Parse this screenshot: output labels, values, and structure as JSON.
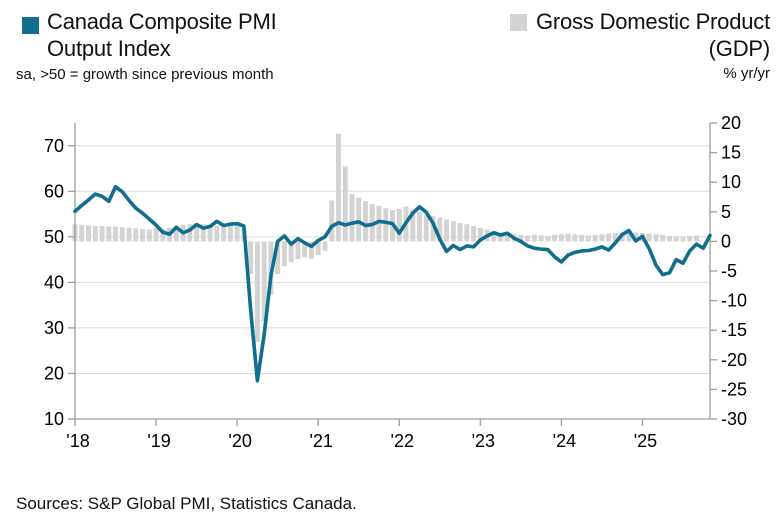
{
  "legend": {
    "pmi": {
      "line1": "Canada Composite PMI",
      "line2": "Output Index",
      "subtitle": "sa, >50 = growth since previous month",
      "color": "#116e8e"
    },
    "gdp": {
      "line1": "Gross Domestic Product",
      "line2": "(GDP)",
      "subtitle": "% yr/yr",
      "color": "#d3d3d3"
    }
  },
  "footer": {
    "sources": "Sources: S&P Global PMI, Statistics Canada."
  },
  "chart_data": {
    "type": "line+bar combo, monthly data Jan 2018 onward",
    "x_tick_labels": [
      "'18",
      "'19",
      "'20",
      "'21",
      "'22",
      "'23",
      "'24",
      "'25"
    ],
    "months_per_point": 1,
    "start_month": "2018-01",
    "left_axis": {
      "min": 10,
      "max": 75,
      "ticks": [
        70,
        60,
        50,
        40,
        30,
        20,
        10
      ]
    },
    "right_axis": {
      "min": -30,
      "max": 20,
      "ticks": [
        20,
        15,
        10,
        5,
        0,
        -5,
        -10,
        -15,
        -20,
        -25,
        -30
      ]
    },
    "gridlines": [
      20,
      30,
      40,
      50,
      60,
      70
    ],
    "grid_color": "#dcdcdc",
    "axis_color": "#9e9e9e",
    "series": [
      {
        "name": "Canada Composite PMI Output Index",
        "type": "line",
        "axis": "left",
        "color": "#116e8e",
        "values": [
          55.6,
          56.9,
          58.1,
          59.4,
          58.9,
          57.8,
          61.0,
          59.9,
          58.0,
          56.3,
          55.2,
          53.9,
          52.6,
          51.0,
          50.6,
          52.1,
          50.9,
          51.5,
          52.7,
          51.9,
          52.3,
          53.4,
          52.5,
          52.8,
          52.9,
          52.4,
          34.0,
          18.4,
          28.5,
          41.5,
          49.0,
          50.2,
          48.4,
          49.6,
          48.7,
          47.9,
          49.2,
          50.0,
          52.3,
          53.1,
          52.6,
          53.0,
          53.3,
          52.5,
          52.7,
          53.4,
          53.2,
          52.9,
          50.8,
          53.1,
          55.2,
          56.6,
          55.4,
          53.0,
          49.5,
          46.8,
          48.1,
          47.2,
          48.0,
          47.8,
          49.3,
          50.2,
          50.9,
          50.4,
          50.8,
          49.7,
          49.0,
          48.0,
          47.5,
          47.3,
          47.2,
          45.6,
          44.5,
          46.0,
          46.6,
          46.9,
          47.0,
          47.3,
          47.8,
          47.1,
          48.7,
          50.5,
          51.4,
          49.1,
          50.1,
          47.4,
          43.8,
          41.7,
          42.1,
          45.0,
          44.2,
          46.9,
          48.4,
          47.5,
          50.3
        ]
      },
      {
        "name": "Gross Domestic Product (GDP)",
        "type": "bar",
        "axis": "right",
        "color": "#d3d3d3",
        "values": [
          2.9,
          2.8,
          2.7,
          2.6,
          2.6,
          2.5,
          2.5,
          2.4,
          2.3,
          2.2,
          2.1,
          2.0,
          2.2,
          2.1,
          2.3,
          2.6,
          2.8,
          2.9,
          3.0,
          2.9,
          2.8,
          2.7,
          2.6,
          2.7,
          2.8,
          2.3,
          -5.5,
          -17.0,
          -13.5,
          -9.0,
          -5.5,
          -4.2,
          -3.5,
          -3.0,
          -2.7,
          -2.9,
          -2.3,
          -1.6,
          6.9,
          18.2,
          12.7,
          8.0,
          7.4,
          6.8,
          6.3,
          6.0,
          5.6,
          5.3,
          5.5,
          5.9,
          5.4,
          5.0,
          4.6,
          4.3,
          4.0,
          3.7,
          3.4,
          3.1,
          2.9,
          2.6,
          2.3,
          2.0,
          1.8,
          1.5,
          1.4,
          1.2,
          1.1,
          1.0,
          1.1,
          1.0,
          0.9,
          1.1,
          1.2,
          1.3,
          1.2,
          1.1,
          1.0,
          1.1,
          1.2,
          1.3,
          1.4,
          1.5,
          1.6,
          1.5,
          1.4,
          1.3,
          1.2,
          1.1,
          0.9,
          0.8,
          0.8,
          0.9,
          1.0
        ]
      }
    ]
  }
}
